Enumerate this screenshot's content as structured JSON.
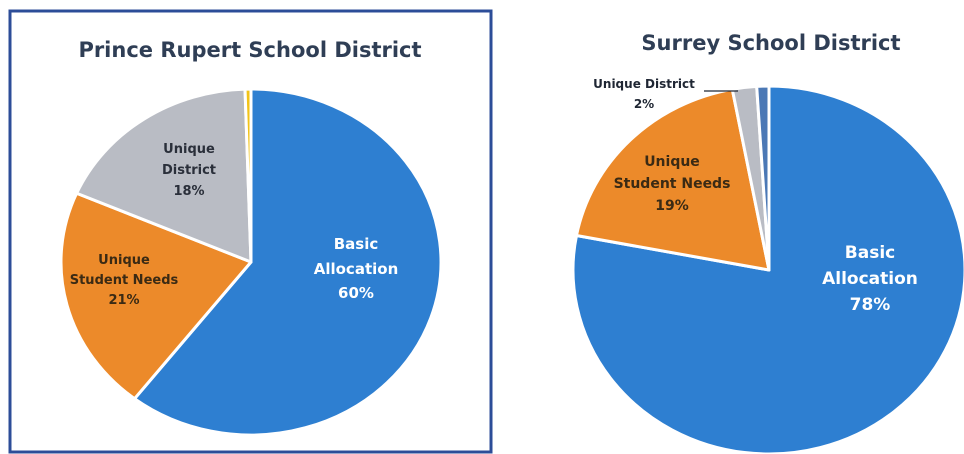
{
  "colors": {
    "basic": "#2e7fd1",
    "student": "#ec8a2a",
    "district": "#b9bcc4",
    "other_yellow": "#f2c318",
    "other_blue": "#4b78b5",
    "frame": "#2c4d98",
    "title": "#2f3e55"
  },
  "chart_data": [
    {
      "type": "pie",
      "title": "Prince Rupert School District",
      "slices": [
        {
          "key": "basic",
          "label": [
            "Basic",
            "Allocation"
          ],
          "percent": "60%",
          "value": 60.5
        },
        {
          "key": "student",
          "label": [
            "Unique",
            "Student Needs"
          ],
          "percent": "21%",
          "value": 21
        },
        {
          "key": "district",
          "label": [
            "Unique",
            "District"
          ],
          "percent": "18%",
          "value": 18
        },
        {
          "key": "other_yellow",
          "label": [],
          "percent": "",
          "value": 0.5
        }
      ]
    },
    {
      "type": "pie",
      "title": "Surrey School District",
      "slices": [
        {
          "key": "basic",
          "label": [
            "Basic",
            "Allocation"
          ],
          "percent": "78%",
          "value": 78
        },
        {
          "key": "student",
          "label": [
            "Unique",
            "Student Needs"
          ],
          "percent": "19%",
          "value": 19
        },
        {
          "key": "district",
          "label": [
            "Unique District"
          ],
          "percent": "2%",
          "value": 2
        },
        {
          "key": "other_blue",
          "label": [],
          "percent": "",
          "value": 1
        }
      ]
    }
  ]
}
